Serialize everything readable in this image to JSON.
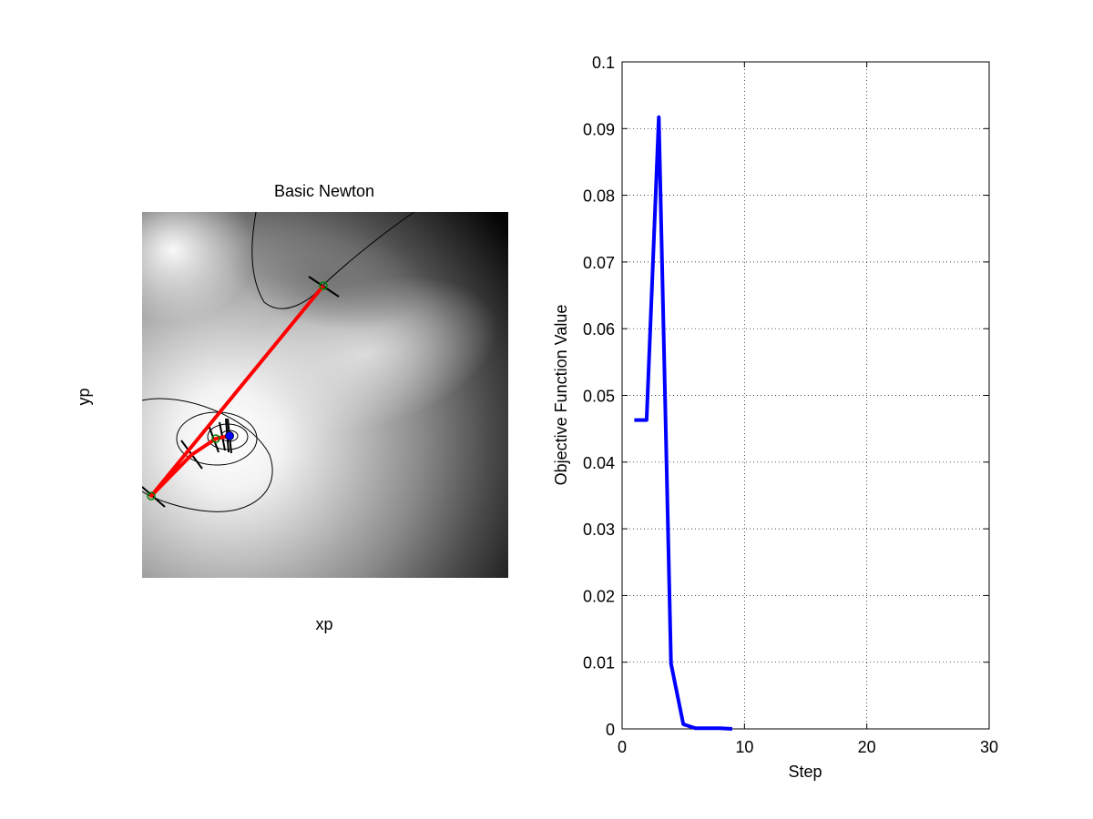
{
  "colors": {
    "path": "#ff0000",
    "series": "#0000ff",
    "contour": "#000000",
    "marker": "#008000",
    "grid": "#000000"
  },
  "chart_data": [
    {
      "type": "contour",
      "title": "Basic Newton",
      "xlabel": "xp",
      "ylabel": "yp",
      "axes_visible": false,
      "colormap": "gray",
      "newton_path": [
        "start",
        "step-1",
        "step-2",
        "step-3",
        "step-4"
      ]
    },
    {
      "type": "line",
      "title": "",
      "xlabel": "Step",
      "ylabel": "Objective Function Value",
      "xlim": [
        0,
        30
      ],
      "ylim": [
        0,
        0.1
      ],
      "xticks": [
        "0",
        "10",
        "20",
        "30"
      ],
      "yticks": [
        "0",
        "0.01",
        "0.02",
        "0.03",
        "0.04",
        "0.05",
        "0.06",
        "0.07",
        "0.08",
        "0.09",
        "0.1"
      ],
      "grid": true,
      "series": [
        {
          "x": [
            1,
            2,
            3,
            4,
            5,
            6,
            7,
            8,
            9
          ],
          "y": [
            0.0463,
            0.0463,
            0.0917,
            0.0098,
            0.0007,
            0.0001,
            0.0001,
            0.0001,
            0.0
          ]
        }
      ]
    }
  ]
}
